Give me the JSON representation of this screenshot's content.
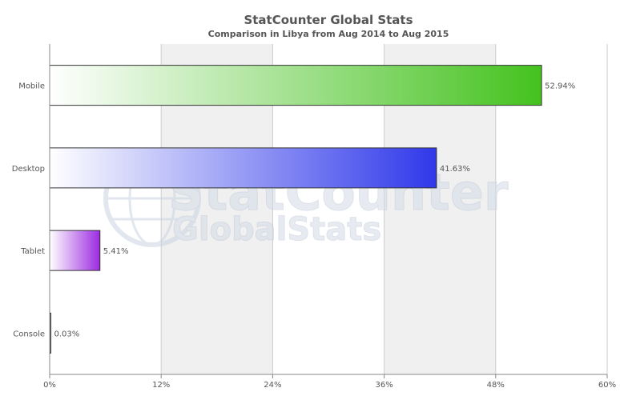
{
  "chart_data": {
    "type": "bar",
    "orientation": "horizontal",
    "title": "StatCounter Global Stats",
    "subtitle": "Comparison in Libya from Aug 2014 to Aug 2015",
    "categories": [
      "Mobile",
      "Desktop",
      "Tablet",
      "Console"
    ],
    "values": [
      52.94,
      41.63,
      5.41,
      0.03
    ],
    "data_labels": [
      "52.94%",
      "41.63%",
      "5.41%",
      "0.03%"
    ],
    "x_ticks": [
      "0%",
      "12%",
      "24%",
      "36%",
      "48%",
      "60%"
    ],
    "xlim": [
      0,
      60
    ],
    "tick_step": 12,
    "grid": true,
    "legend": "none",
    "colors": {
      "Mobile": "#44c21e",
      "Desktop": "#2f38ea",
      "Tablet": "#9c2be0",
      "Console": "#222222"
    }
  },
  "watermark": {
    "line1": "StatCounter",
    "line2": "GlobalStats"
  }
}
